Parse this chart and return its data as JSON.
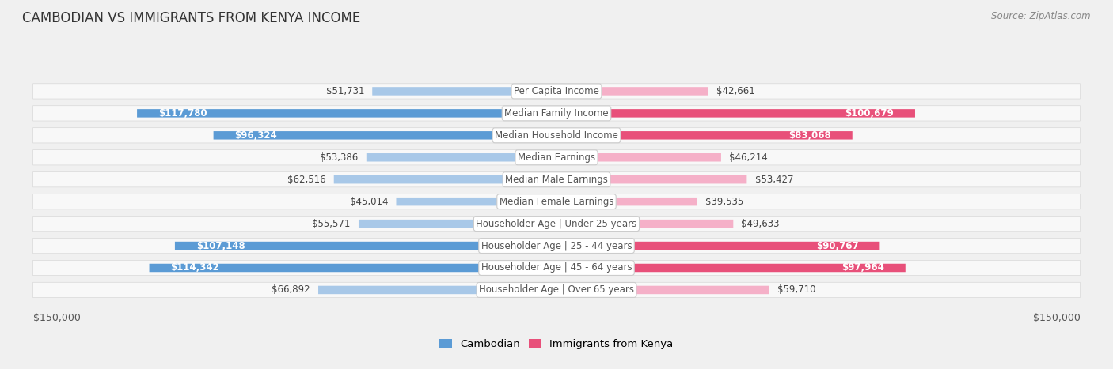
{
  "title": "CAMBODIAN VS IMMIGRANTS FROM KENYA INCOME",
  "source": "Source: ZipAtlas.com",
  "categories": [
    "Per Capita Income",
    "Median Family Income",
    "Median Household Income",
    "Median Earnings",
    "Median Male Earnings",
    "Median Female Earnings",
    "Householder Age | Under 25 years",
    "Householder Age | 25 - 44 years",
    "Householder Age | 45 - 64 years",
    "Householder Age | Over 65 years"
  ],
  "cambodian_values": [
    51731,
    117780,
    96324,
    53386,
    62516,
    45014,
    55571,
    107148,
    114342,
    66892
  ],
  "kenya_values": [
    42661,
    100679,
    83068,
    46214,
    53427,
    39535,
    49633,
    90767,
    97964,
    59710
  ],
  "cambodian_color_light": "#a8c8e8",
  "cambodian_color_dark": "#5b9bd5",
  "kenya_color_light": "#f5b0c8",
  "kenya_color_dark": "#e8507a",
  "max_value": 150000,
  "label_fontsize": 8.5,
  "title_fontsize": 12,
  "source_fontsize": 8.5,
  "legend_fontsize": 9.5,
  "background_color": "#f0f0f0",
  "row_bg_color": "#efefef",
  "row_edge_color": "#d8d8d8",
  "category_label_color": "#555555",
  "large_threshold": 70000,
  "axis_label_color": "#555555"
}
